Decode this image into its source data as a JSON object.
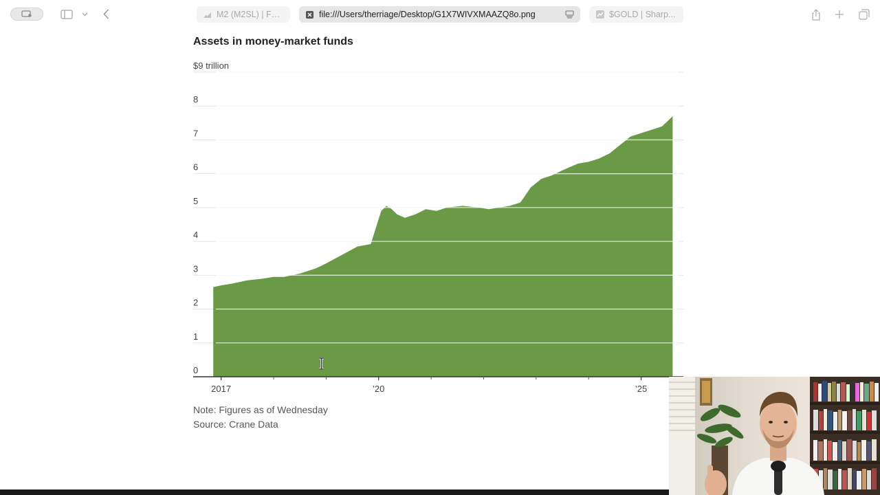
{
  "browser": {
    "tabs": [
      {
        "title": "M2 (M2SL) | FR...",
        "active": false,
        "icon": "chart-favicon-icon"
      },
      {
        "title": "file:///Users/therriage/Desktop/G1X7WIVXMAAZQ8o.png",
        "active": true,
        "icon": "close-icon"
      },
      {
        "title": "$GOLD | Sharp...",
        "active": false,
        "icon": "stockcharts-favicon-icon"
      }
    ]
  },
  "chart": {
    "title": "Assets in money-market funds",
    "note": "Note: Figures as of Wednesday",
    "source": "Source: Crane Data"
  },
  "chart_data": {
    "type": "area",
    "title": "Assets in money-market funds",
    "y_unit_label": "$9 trillion",
    "y_ticks": [
      "0",
      "1",
      "2",
      "3",
      "4",
      "5",
      "6",
      "7",
      "8",
      "$9 trillion"
    ],
    "ylim": [
      0,
      9
    ],
    "xlim": [
      2016.9,
      2025.7
    ],
    "x_tick_labels": [
      {
        "x": 2017,
        "label": "2017"
      },
      {
        "x": 2020,
        "label": "’20"
      },
      {
        "x": 2025,
        "label": "’25"
      }
    ],
    "x_minor_ticks": [
      2018,
      2019,
      2021,
      2022,
      2023,
      2024
    ],
    "fill_color": "#6a9a46",
    "grid": true,
    "x": [
      2016.85,
      2017.0,
      2017.2,
      2017.5,
      2017.8,
      2018.0,
      2018.2,
      2018.5,
      2018.8,
      2019.0,
      2019.3,
      2019.6,
      2019.85,
      2020.05,
      2020.15,
      2020.25,
      2020.35,
      2020.5,
      2020.7,
      2020.9,
      2021.1,
      2021.3,
      2021.6,
      2021.9,
      2022.1,
      2022.3,
      2022.5,
      2022.7,
      2022.9,
      2023.1,
      2023.3,
      2023.5,
      2023.8,
      2024.0,
      2024.2,
      2024.4,
      2024.6,
      2024.8,
      2025.0,
      2025.2,
      2025.4,
      2025.6
    ],
    "values": [
      2.65,
      2.7,
      2.75,
      2.85,
      2.9,
      2.95,
      2.95,
      3.05,
      3.2,
      3.35,
      3.6,
      3.85,
      3.92,
      4.9,
      5.05,
      4.95,
      4.8,
      4.7,
      4.8,
      4.95,
      4.9,
      5.0,
      5.05,
      5.0,
      4.95,
      5.0,
      5.05,
      5.15,
      5.6,
      5.85,
      5.95,
      6.1,
      6.3,
      6.35,
      6.45,
      6.6,
      6.85,
      7.1,
      7.2,
      7.3,
      7.4,
      7.7
    ]
  }
}
